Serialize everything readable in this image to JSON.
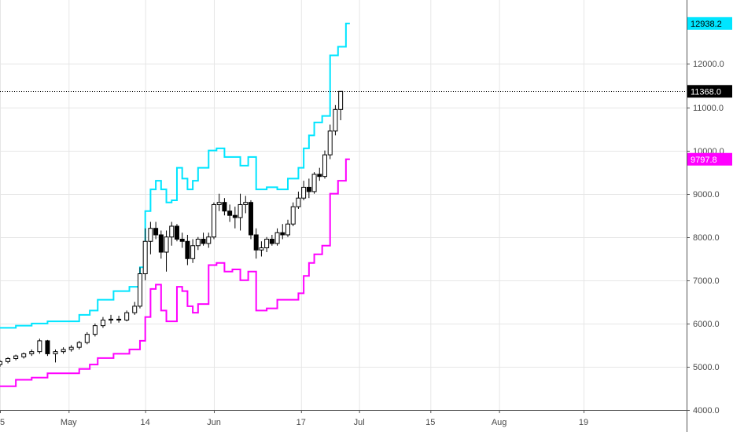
{
  "chart_data": {
    "type": "candlestick",
    "x_axis": {
      "tick_labels": [
        "5",
        "May",
        "14",
        "Jun",
        "17",
        "Jul",
        "15",
        "Aug",
        "19"
      ],
      "tick_days": [
        0,
        26,
        55,
        81,
        114,
        136,
        163,
        189,
        221
      ],
      "range_days": [
        0,
        260
      ]
    },
    "y_axis": {
      "tick_labels": [
        "4000.0",
        "5000.0",
        "6000.0",
        "7000.0",
        "8000.0",
        "9000.0",
        "10000.0",
        "11000.0",
        "12000.0"
      ],
      "tick_values": [
        4000,
        5000,
        6000,
        7000,
        8000,
        9000,
        10000,
        11000,
        12000
      ],
      "range": [
        4000,
        13480
      ],
      "side": "right"
    },
    "current_price_line": 11368.0,
    "price_tags": [
      {
        "value": 12938.2,
        "label": "12938.2",
        "bg": "#00e5ff",
        "fg": "#000000"
      },
      {
        "value": 11368.0,
        "label": "11368.0",
        "bg": "#000000",
        "fg": "#ffffff"
      },
      {
        "value": 9797.8,
        "label": "9797.8",
        "bg": "#ff00ff",
        "fg": "#ffffff"
      }
    ],
    "series": [
      {
        "kind": "ohlc",
        "candles": [
          [
            0,
            5050,
            5150,
            5000,
            5120
          ],
          [
            3,
            5120,
            5220,
            5080,
            5190
          ],
          [
            6,
            5190,
            5280,
            5150,
            5250
          ],
          [
            9,
            5230,
            5330,
            5190,
            5300
          ],
          [
            12,
            5300,
            5400,
            5250,
            5350
          ],
          [
            15,
            5350,
            5650,
            5300,
            5600
          ],
          [
            18,
            5600,
            5620,
            5250,
            5300
          ],
          [
            21,
            5300,
            5400,
            5100,
            5350
          ],
          [
            24,
            5350,
            5450,
            5300,
            5400
          ],
          [
            27,
            5400,
            5500,
            5350,
            5450
          ],
          [
            30,
            5450,
            5600,
            5400,
            5560
          ],
          [
            33,
            5560,
            5800,
            5520,
            5750
          ],
          [
            36,
            5750,
            6000,
            5700,
            5950
          ],
          [
            39,
            5950,
            6150,
            5900,
            6080
          ],
          [
            42,
            6080,
            6200,
            6000,
            6100
          ],
          [
            45,
            6100,
            6180,
            6020,
            6080
          ],
          [
            48,
            6080,
            6300,
            6050,
            6250
          ],
          [
            51,
            6250,
            6500,
            6200,
            6400
          ],
          [
            53,
            6400,
            7300,
            6350,
            7150
          ],
          [
            55,
            7150,
            8200,
            7000,
            7900
          ],
          [
            57,
            7900,
            8350,
            7600,
            8200
          ],
          [
            59,
            8200,
            8350,
            7950,
            8050
          ],
          [
            61,
            8050,
            8150,
            7500,
            7650
          ],
          [
            63,
            7650,
            8150,
            7200,
            8000
          ],
          [
            65,
            8000,
            8350,
            7800,
            8250
          ],
          [
            67,
            8250,
            8300,
            7900,
            7950
          ],
          [
            69,
            7950,
            8100,
            7750,
            7900
          ],
          [
            71,
            7900,
            8050,
            7350,
            7500
          ],
          [
            73,
            7500,
            7950,
            7400,
            7800
          ],
          [
            75,
            7800,
            8000,
            7700,
            7950
          ],
          [
            77,
            7950,
            8100,
            7800,
            7850
          ],
          [
            79,
            7850,
            8100,
            7750,
            8000
          ],
          [
            81,
            8000,
            8800,
            7950,
            8750
          ],
          [
            83,
            8750,
            9000,
            8600,
            8800
          ],
          [
            85,
            8800,
            8900,
            8500,
            8600
          ],
          [
            87,
            8600,
            8750,
            8350,
            8500
          ],
          [
            89,
            8500,
            8700,
            8200,
            8450
          ],
          [
            91,
            8450,
            9000,
            8150,
            8750
          ],
          [
            93,
            8750,
            8950,
            8550,
            8800
          ],
          [
            95,
            8800,
            8850,
            7950,
            8050
          ],
          [
            97,
            8050,
            8200,
            7500,
            7700
          ],
          [
            99,
            7700,
            7900,
            7550,
            7750
          ],
          [
            101,
            7750,
            8000,
            7650,
            7950
          ],
          [
            103,
            7950,
            8050,
            7800,
            7850
          ],
          [
            105,
            7850,
            8200,
            7800,
            8100
          ],
          [
            107,
            8100,
            8300,
            7950,
            8050
          ],
          [
            109,
            8050,
            8400,
            8000,
            8300
          ],
          [
            111,
            8300,
            8800,
            8250,
            8700
          ],
          [
            113,
            8700,
            9050,
            8650,
            8900
          ],
          [
            115,
            8900,
            9300,
            8850,
            9150
          ],
          [
            117,
            9150,
            9350,
            8900,
            9050
          ],
          [
            119,
            9050,
            9500,
            9000,
            9450
          ],
          [
            121,
            9450,
            9600,
            9300,
            9400
          ],
          [
            123,
            9400,
            10000,
            9350,
            9900
          ],
          [
            125,
            9900,
            10600,
            9800,
            10450
          ],
          [
            127,
            10450,
            11050,
            10350,
            10950
          ],
          [
            129,
            10950,
            11368,
            10700,
            11368
          ]
        ]
      },
      {
        "kind": "step-line",
        "color": "#00e5ff",
        "points": [
          [
            0,
            5900
          ],
          [
            6,
            5950
          ],
          [
            12,
            6000
          ],
          [
            18,
            6050
          ],
          [
            24,
            6050
          ],
          [
            30,
            6200
          ],
          [
            34,
            6300
          ],
          [
            37,
            6550
          ],
          [
            43,
            6750
          ],
          [
            49,
            6850
          ],
          [
            53,
            7300
          ],
          [
            55,
            8600
          ],
          [
            57,
            9100
          ],
          [
            59,
            9300
          ],
          [
            61,
            9100
          ],
          [
            63,
            8800
          ],
          [
            65,
            8850
          ],
          [
            67,
            9600
          ],
          [
            69,
            9350
          ],
          [
            71,
            9100
          ],
          [
            73,
            9300
          ],
          [
            75,
            9600
          ],
          [
            79,
            10000
          ],
          [
            82,
            10050
          ],
          [
            85,
            9850
          ],
          [
            88,
            9850
          ],
          [
            91,
            9650
          ],
          [
            94,
            9850
          ],
          [
            97,
            9100
          ],
          [
            101,
            9150
          ],
          [
            105,
            9100
          ],
          [
            109,
            9350
          ],
          [
            113,
            9600
          ],
          [
            115,
            10050
          ],
          [
            117,
            10350
          ],
          [
            119,
            10650
          ],
          [
            122,
            10800
          ],
          [
            125,
            12200
          ],
          [
            128,
            12400
          ],
          [
            131,
            12938.2
          ]
        ]
      },
      {
        "kind": "step-line",
        "color": "#ff00ff",
        "points": [
          [
            0,
            4550
          ],
          [
            6,
            4700
          ],
          [
            12,
            4750
          ],
          [
            18,
            4850
          ],
          [
            24,
            4850
          ],
          [
            30,
            4950
          ],
          [
            34,
            5050
          ],
          [
            37,
            5200
          ],
          [
            43,
            5300
          ],
          [
            49,
            5400
          ],
          [
            53,
            5600
          ],
          [
            55,
            6150
          ],
          [
            57,
            6800
          ],
          [
            59,
            6900
          ],
          [
            61,
            6300
          ],
          [
            63,
            6050
          ],
          [
            65,
            6050
          ],
          [
            67,
            6850
          ],
          [
            69,
            6750
          ],
          [
            71,
            6400
          ],
          [
            73,
            6250
          ],
          [
            75,
            6450
          ],
          [
            79,
            7350
          ],
          [
            82,
            7400
          ],
          [
            85,
            7200
          ],
          [
            88,
            7250
          ],
          [
            91,
            7000
          ],
          [
            94,
            7200
          ],
          [
            97,
            6300
          ],
          [
            101,
            6350
          ],
          [
            105,
            6550
          ],
          [
            109,
            6550
          ],
          [
            113,
            6700
          ],
          [
            115,
            7100
          ],
          [
            117,
            7400
          ],
          [
            119,
            7600
          ],
          [
            122,
            7800
          ],
          [
            125,
            9000
          ],
          [
            128,
            9300
          ],
          [
            131,
            9797.8
          ]
        ]
      }
    ],
    "grid": true
  }
}
